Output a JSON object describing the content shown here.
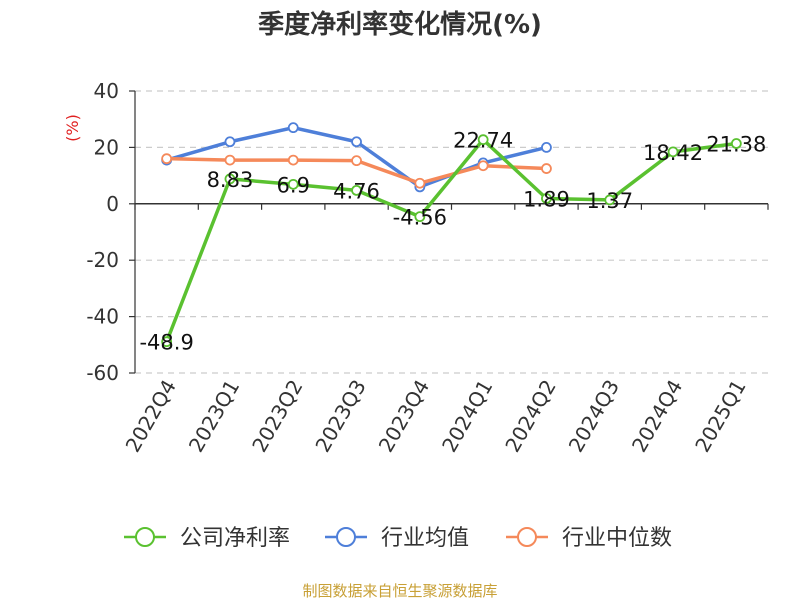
{
  "chart_data": {
    "type": "line",
    "title": "季度净利率变化情况(%)",
    "ylabel": "(%)",
    "categories": [
      "2022Q4",
      "2023Q1",
      "2023Q2",
      "2023Q3",
      "2023Q4",
      "2024Q1",
      "2024Q2",
      "2024Q3",
      "2024Q4",
      "2025Q1"
    ],
    "ylim": [
      -60,
      40
    ],
    "yticks": [
      40,
      20,
      0,
      -20,
      -40,
      -60
    ],
    "grid": true,
    "legend_position": "bottom",
    "series": [
      {
        "name": "公司净利率",
        "color": "#5ac130",
        "values": [
          -48.9,
          8.83,
          6.9,
          4.76,
          -4.56,
          22.74,
          1.89,
          1.37,
          18.42,
          21.38
        ],
        "labels": [
          "-48.9",
          "8.83",
          "6.9",
          "4.76",
          "-4.56",
          "22.74",
          "1.89",
          "1.37",
          "18.42",
          "21.38"
        ]
      },
      {
        "name": "行业均值",
        "color": "#4e7fd9",
        "values": [
          15.5,
          22,
          27,
          22,
          6,
          14.5,
          20,
          null,
          null,
          null
        ]
      },
      {
        "name": "行业中位数",
        "color": "#f5895a",
        "values": [
          16,
          15.5,
          15.5,
          15.3,
          7.3,
          13.5,
          12.5,
          null,
          null,
          null
        ]
      }
    ],
    "source": "制图数据来自恒生聚源数据库"
  }
}
